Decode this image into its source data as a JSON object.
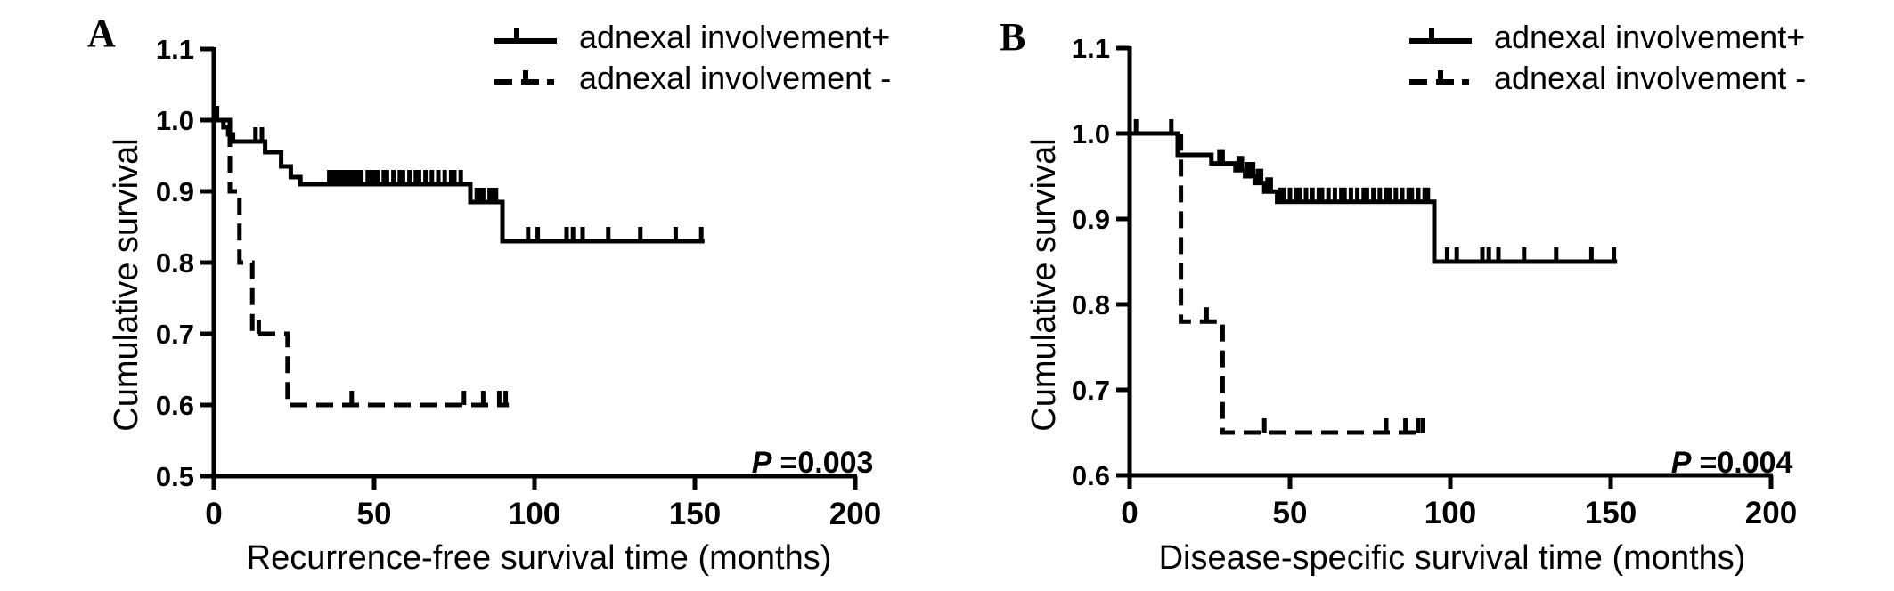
{
  "figure_colors": {
    "foreground": "#000000",
    "background": "#ffffff"
  },
  "chart_data": [
    {
      "type": "line",
      "subtype": "kaplan-meier-step",
      "label": "A",
      "xlabel": "Recurrence-free survival time (months)",
      "ylabel": "Cumulative survival",
      "xlim": [
        0,
        200
      ],
      "ylim": [
        0.5,
        1.1
      ],
      "xticks": [
        "0",
        "50",
        "100",
        "150",
        "200"
      ],
      "yticks": [
        "1.1",
        "1.0",
        "0.9",
        "0.8",
        "0.7",
        "0.6",
        "0.5"
      ],
      "grid": false,
      "legend_position": "top-right",
      "p_label": "P",
      "p_value": "=0.003",
      "legend": [
        {
          "label": "adnexal involvement+",
          "style": "solid"
        },
        {
          "label": "adnexal involvement -",
          "style": "dashed"
        }
      ],
      "series": [
        {
          "name": "adnexal involvement+",
          "style": "solid",
          "steps": [
            [
              0,
              1.0
            ],
            [
              3,
              0.99
            ],
            [
              4.5,
              0.98
            ],
            [
              6,
              0.97
            ],
            [
              16,
              0.955
            ],
            [
              21,
              0.935
            ],
            [
              24,
              0.92
            ],
            [
              27,
              0.91
            ],
            [
              80,
              0.885
            ],
            [
              90,
              0.83
            ]
          ],
          "end": 153,
          "censor": [
            1,
            5,
            13,
            15,
            36,
            37,
            38,
            39,
            40,
            41,
            42,
            43,
            44,
            45,
            46,
            48,
            49,
            50,
            51,
            53,
            54,
            56,
            58,
            59,
            61,
            63,
            64,
            66,
            68,
            70,
            72,
            74,
            75,
            77,
            82,
            83,
            84,
            86,
            87,
            88,
            98,
            101,
            110,
            112,
            115,
            123,
            133,
            144,
            152
          ]
        },
        {
          "name": "adnexal involvement-",
          "style": "dashed",
          "steps": [
            [
              0,
              1.0
            ],
            [
              5,
              0.9
            ],
            [
              8,
              0.8
            ],
            [
              12,
              0.7
            ],
            [
              23,
              0.6
            ]
          ],
          "end": 92,
          "censor": [
            14,
            43,
            78,
            84,
            89,
            91
          ]
        }
      ]
    },
    {
      "type": "line",
      "subtype": "kaplan-meier-step",
      "label": "B",
      "xlabel": "Disease-specific survival time (months)",
      "ylabel": "Cumulative survival",
      "xlim": [
        0,
        200
      ],
      "ylim": [
        0.6,
        1.1
      ],
      "xticks": [
        "0",
        "50",
        "100",
        "150",
        "200"
      ],
      "yticks": [
        "1.1",
        "1.0",
        "0.9",
        "0.8",
        "0.7",
        "0.6"
      ],
      "grid": false,
      "legend_position": "top-right",
      "p_label": "P",
      "p_value": "=0.004",
      "legend": [
        {
          "label": "adnexal involvement+",
          "style": "solid"
        },
        {
          "label": "adnexal involvement -",
          "style": "dashed"
        }
      ],
      "series": [
        {
          "name": "adnexal involvement+",
          "style": "solid",
          "steps": [
            [
              0,
              1.0
            ],
            [
              15,
              0.975
            ],
            [
              25.5,
              0.965
            ],
            [
              33,
              0.957
            ],
            [
              36,
              0.95
            ],
            [
              39,
              0.942
            ],
            [
              42,
              0.932
            ],
            [
              46,
              0.92
            ],
            [
              95,
              0.85
            ]
          ],
          "end": 152,
          "censor": [
            2,
            13,
            28,
            29,
            34,
            35,
            36.5,
            37.5,
            38.5,
            40,
            41,
            43,
            44,
            47,
            48,
            50,
            52,
            53,
            55,
            57,
            59,
            60,
            62,
            64,
            66,
            67,
            69,
            71,
            73,
            74,
            76,
            78,
            80,
            81,
            83,
            85,
            87,
            88,
            90,
            92,
            93,
            99,
            102,
            110,
            112,
            115,
            123,
            133,
            144,
            151
          ]
        },
        {
          "name": "adnexal involvement-",
          "style": "dashed",
          "steps": [
            [
              0,
              1.0
            ],
            [
              16,
              0.78
            ],
            [
              29,
              0.65
            ]
          ],
          "end": 92,
          "censor": [
            24,
            42,
            80,
            86,
            90,
            91.5
          ]
        }
      ]
    }
  ]
}
